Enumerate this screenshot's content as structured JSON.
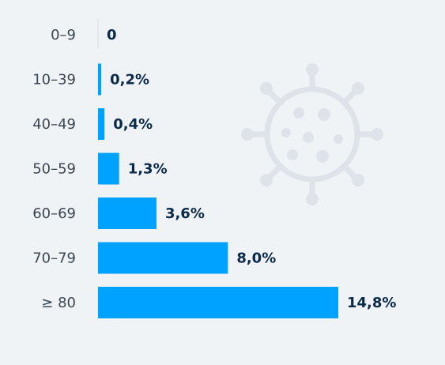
{
  "chart_data": {
    "type": "bar",
    "orientation": "horizontal",
    "title": "",
    "xlabel": "",
    "ylabel": "",
    "categories": [
      "0–9",
      "10–39",
      "40–49",
      "50–59",
      "60–69",
      "70–79",
      "≥ 80"
    ],
    "values": [
      0,
      0.2,
      0.4,
      1.3,
      3.6,
      8.0,
      14.8
    ],
    "value_labels": [
      "0",
      "0,2%",
      "0,4%",
      "1,3%",
      "3,6%",
      "8,0%",
      "14,8%"
    ],
    "xlim": [
      0,
      14.8
    ],
    "unit": "%",
    "grid": false,
    "legend": "none"
  },
  "colors": {
    "background": "#f0f3f6",
    "bar": "#00a2ff",
    "value_text": "#0b2a4a",
    "category_text": "#3b4651",
    "watermark": "#dde3e8"
  },
  "icons": {
    "watermark": "virus-icon"
  }
}
